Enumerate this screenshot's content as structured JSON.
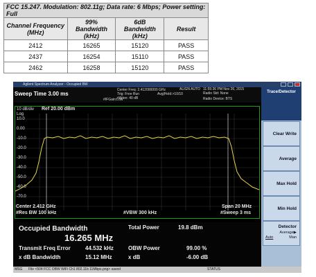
{
  "table": {
    "caption": "FCC 15.247. Modulation: 802.11g; Data rate: 6 Mbps; Power setting: Full",
    "headers": [
      "Channel Frequency (MHz)",
      "99% Bandwidth (kHz)",
      "6dB Bandwidth (kHz)",
      "Result"
    ],
    "rows": [
      [
        "2412",
        "16265",
        "15120",
        "PASS"
      ],
      [
        "2437",
        "16254",
        "15110",
        "PASS"
      ],
      [
        "2462",
        "16258",
        "15120",
        "PASS"
      ]
    ]
  },
  "analyzer": {
    "window_title": "Agilent Spectrum Analyzer - Occupied BW",
    "sweep_time": "Sweep Time 3.00 ms",
    "center_freq_info": "Center Freq: 2.412000000 GHz",
    "trig": "Trig: Free Run",
    "avg_hold": "Avg|Hold:>10/10",
    "atten": "#Atten: 40 dB",
    "ifgain": "#IFGain:Low",
    "radio_std": "Radio Std: None",
    "radio_device": "Radio Device: BTS",
    "datetime": "11:55:36 PM Nov 26, 2015",
    "align": "ALIGN AUTO",
    "scale": "10 dB/div",
    "ref_level": "Ref 20.00 dBm",
    "y_labels": [
      "Log",
      "10.0",
      "0.00",
      "-10.0",
      "-20.0",
      "-30.0",
      "-40.0",
      "-50.0",
      "-60.0",
      "-70.0"
    ],
    "center": "Center 2.412 GHz",
    "res_bw": "#Res BW 100 kHz",
    "vbw": "#VBW 300 kHz",
    "span": "Span 20 MHz",
    "sweep": "#Sweep 3 ms",
    "occ_bw_label": "Occupied Bandwidth",
    "occ_bw_value": "16.265 MHz",
    "total_power_label": "Total Power",
    "total_power_value": "19.8 dBm",
    "tx_freq_err_label": "Transmit Freq Error",
    "tx_freq_err_value": "44.532 kHz",
    "obw_power_label": "OBW Power",
    "obw_power_value": "99.00 %",
    "xdb_bw_label": "x dB Bandwidth",
    "xdb_bw_value": "15.12 MHz",
    "xdb_label": "x dB",
    "xdb_value": "-6.00 dB",
    "status_msg": "File <504 FCC OBW WiFi Ch1 802.11b 11Mbps.png> saved",
    "status_label": "STATUS",
    "msg_label": "MSG"
  },
  "side_panel": {
    "title": "Trace/Detector",
    "buttons": [
      "Clear Write",
      "Average",
      "Max Hold",
      "Min Hold"
    ],
    "detector_label": "Detector",
    "detector_value": "Average▶",
    "detector_mode": "Man",
    "auto_label": "Auto"
  },
  "colors": {
    "trace": "#e8d44a",
    "plot_border": "#15a015",
    "side_header": "#1f3f73"
  }
}
